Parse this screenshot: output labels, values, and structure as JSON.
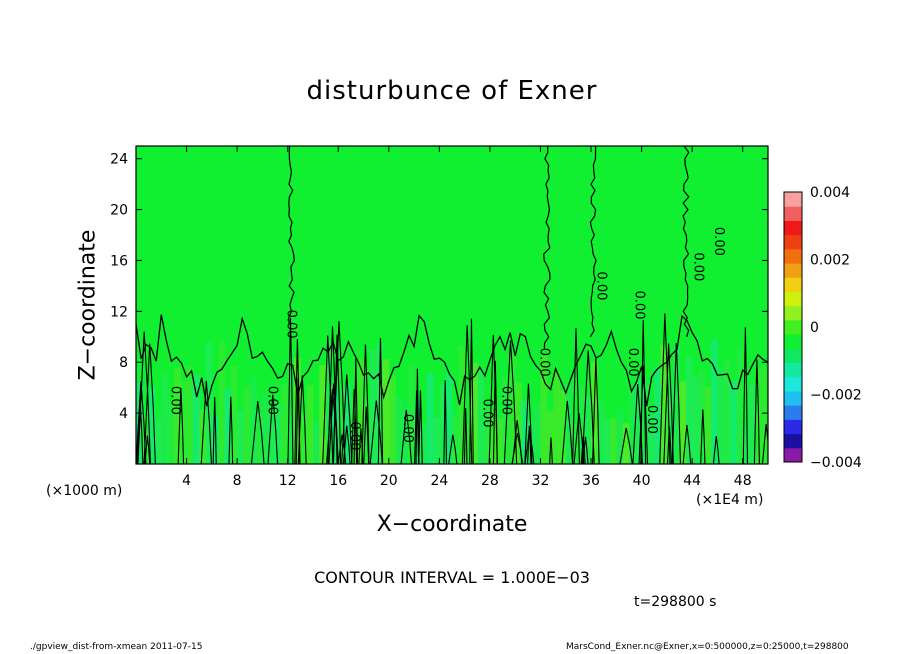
{
  "chart_data": {
    "type": "heatmap",
    "title": "disturbunce of Exner",
    "xlabel": "X−coordinate",
    "ylabel": "Z−coordinate",
    "x_unit_label": "(×1000 m)",
    "x_unit_label_right": "(×1E4 m)",
    "xlim": [
      0,
      50
    ],
    "ylim": [
      0,
      25
    ],
    "x_ticks": [
      "4",
      "8",
      "12",
      "16",
      "20",
      "24",
      "28",
      "32",
      "36",
      "40",
      "44",
      "48"
    ],
    "x_tick_values": [
      4,
      8,
      12,
      16,
      20,
      24,
      28,
      32,
      36,
      40,
      44,
      48
    ],
    "y_ticks": [
      "4",
      "8",
      "12",
      "16",
      "20",
      "24"
    ],
    "y_tick_values": [
      4,
      8,
      12,
      16,
      20,
      24
    ],
    "colorbar": {
      "range": [
        -0.004,
        0.004
      ],
      "tick_labels": [
        "0.004",
        "0.002",
        "0",
        "−0.002",
        "−0.004"
      ],
      "tick_values": [
        0.004,
        0.002,
        0,
        -0.002,
        -0.004
      ],
      "colors": [
        "#8a1aa8",
        "#1a10a0",
        "#2a2ae8",
        "#2a7cf0",
        "#20bff0",
        "#1ae8d8",
        "#12e8a0",
        "#10e860",
        "#10f030",
        "#40f020",
        "#90f020",
        "#d0f010",
        "#f0d010",
        "#f0a010",
        "#f07010",
        "#f04010",
        "#f01818",
        "#f06060",
        "#f8a0a0"
      ]
    },
    "contour_labels": [
      "0.00",
      "0.00",
      "0.00",
      "0.00",
      "0.00",
      "0.00",
      "0.00",
      "0.00",
      "0.00",
      "0.00",
      "0.00",
      "0.00",
      "0.00",
      "0.00"
    ],
    "contour_interval_text": "CONTOUR INTERVAL = 1.000E−03",
    "time_text": "t=298800 s"
  },
  "footer": {
    "left": "./gpview_dist-from-xmean  2011-07-15",
    "right": "MarsCond_Exner.nc@Exner,x=0:500000,z=0:25000,t=298800"
  },
  "colors": {
    "field_background": "#10f030",
    "near_zero_band": "#20e850",
    "frame": "#000000"
  }
}
